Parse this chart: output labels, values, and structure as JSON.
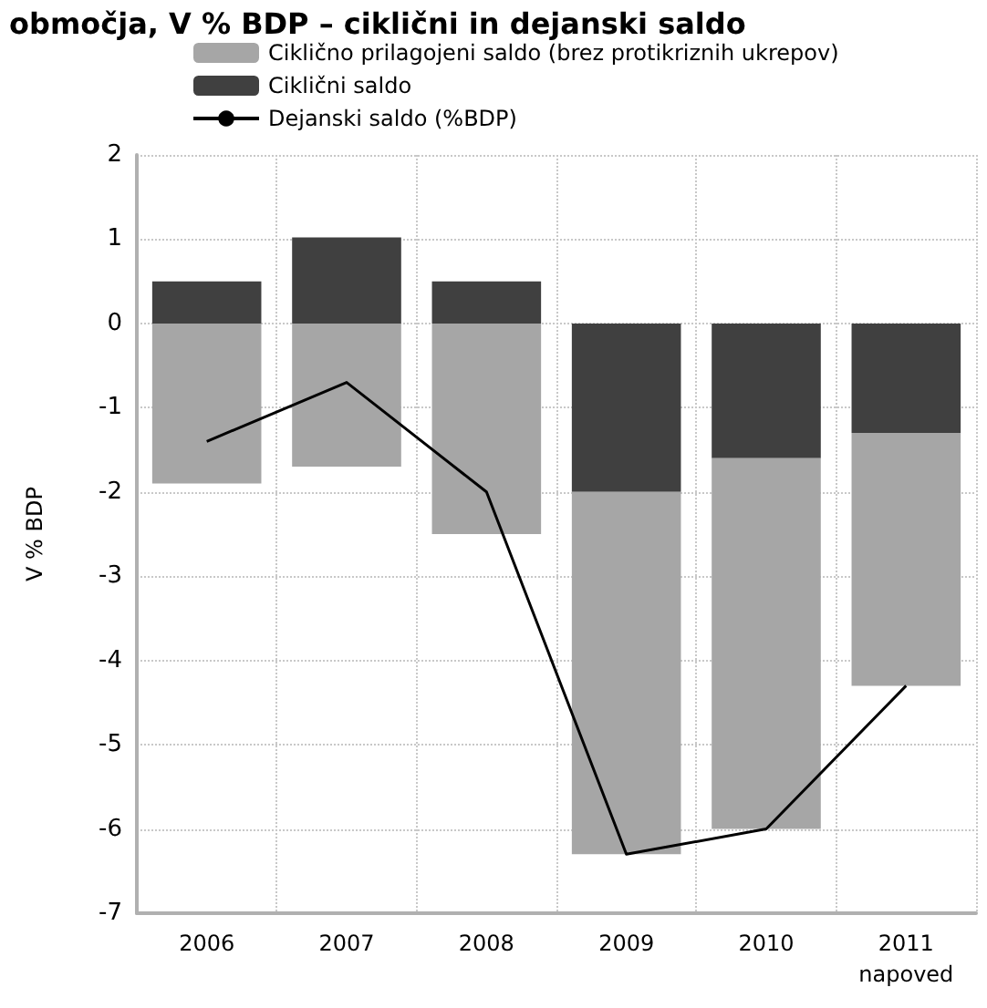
{
  "chart_data": {
    "type": "bar",
    "title": "območja, V % BDP – ciklični in dejanski saldo",
    "ylabel": "V % BDP",
    "categories": [
      "2006",
      "2007",
      "2008",
      "2009",
      "2010",
      "2011\nnapoved"
    ],
    "stacked": true,
    "series": [
      {
        "name": "Ciklični saldo",
        "color": "#404040",
        "values": [
          0.5,
          1.02,
          0.5,
          -2.0,
          -1.6,
          -1.3
        ]
      },
      {
        "name": "Ciklično prilagojeni saldo (brez protikriznih ukrepov)",
        "color": "#a6a6a6",
        "values": [
          -1.9,
          -1.7,
          -2.5,
          -4.3,
          -4.4,
          -3.0
        ]
      },
      {
        "name": "Dejanski saldo (%BDP)",
        "type": "line",
        "color": "#000000",
        "marker": "none",
        "values": [
          -1.4,
          -0.7,
          -2.0,
          -6.3,
          -6.0,
          -4.3
        ]
      }
    ],
    "ylim": [
      -7,
      2
    ],
    "yticks": [
      -7,
      -6,
      -5,
      -4,
      -3,
      -2,
      -1,
      0,
      1,
      2
    ],
    "grid": true,
    "legend": "top"
  }
}
